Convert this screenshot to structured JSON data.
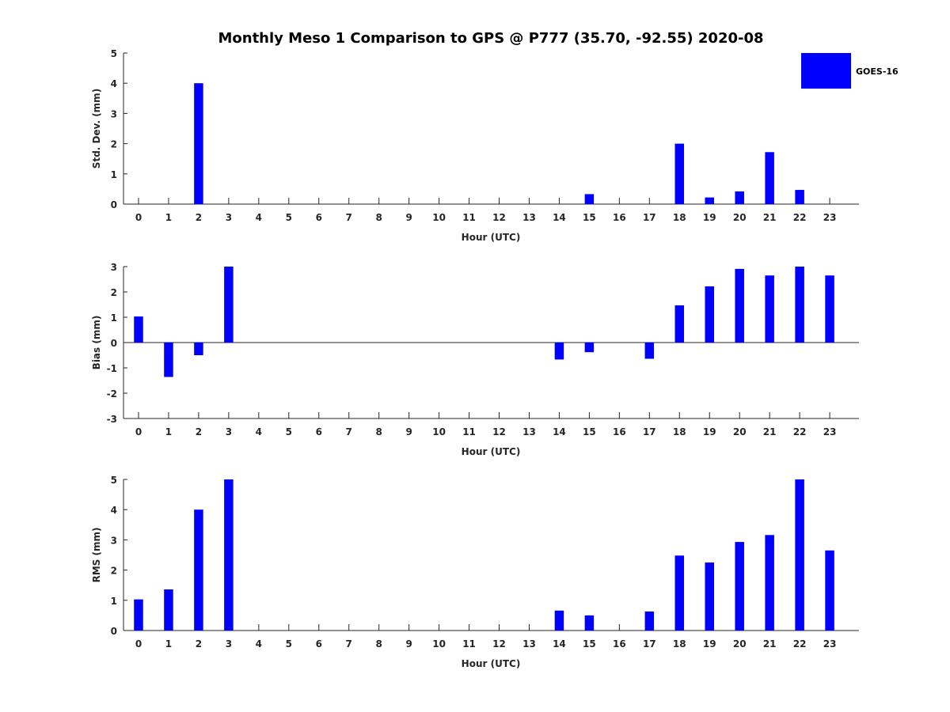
{
  "chart_data": {
    "title": "Monthly Meso 1 Comparison to GPS @ P777 (35.70, -92.55) 2020-08",
    "legend": {
      "label": "GOES-16",
      "color": "#0000ff",
      "placement": "top-right"
    },
    "bar_color": "#0000ff",
    "panels": [
      {
        "type": "bar",
        "name": "std-dev",
        "xlabel": "Hour (UTC)",
        "ylabel": "Std. Dev. (mm)",
        "ylim": [
          0,
          5
        ],
        "yticks": [
          0,
          1,
          2,
          3,
          4,
          5
        ],
        "categories": [
          "0",
          "1",
          "2",
          "3",
          "4",
          "5",
          "6",
          "7",
          "8",
          "9",
          "10",
          "11",
          "12",
          "13",
          "14",
          "15",
          "16",
          "17",
          "18",
          "19",
          "20",
          "21",
          "22",
          "23"
        ],
        "values": [
          0,
          0,
          4.0,
          0,
          0,
          0,
          0,
          0,
          0,
          0,
          0,
          0,
          0,
          0,
          0,
          0.33,
          0,
          0,
          2.0,
          0.22,
          0.42,
          1.72,
          0.47,
          0
        ]
      },
      {
        "type": "bar",
        "name": "bias",
        "xlabel": "Hour (UTC)",
        "ylabel": "Bias (mm)",
        "ylim": [
          -3,
          3
        ],
        "yticks": [
          -3,
          -2,
          -1,
          0,
          1,
          2,
          3
        ],
        "categories": [
          "0",
          "1",
          "2",
          "3",
          "4",
          "5",
          "6",
          "7",
          "8",
          "9",
          "10",
          "11",
          "12",
          "13",
          "14",
          "15",
          "16",
          "17",
          "18",
          "19",
          "20",
          "21",
          "22",
          "23"
        ],
        "values": [
          1.03,
          -1.36,
          -0.5,
          3.0,
          0,
          0,
          0,
          0,
          0,
          0,
          0,
          0,
          0,
          0,
          -0.67,
          -0.38,
          0,
          -0.64,
          1.47,
          2.22,
          2.91,
          2.65,
          3.0,
          2.65
        ]
      },
      {
        "type": "bar",
        "name": "rms",
        "xlabel": "Hour (UTC)",
        "ylabel": "RMS (mm)",
        "ylim": [
          0,
          5
        ],
        "yticks": [
          0,
          1,
          2,
          3,
          4,
          5
        ],
        "categories": [
          "0",
          "1",
          "2",
          "3",
          "4",
          "5",
          "6",
          "7",
          "8",
          "9",
          "10",
          "11",
          "12",
          "13",
          "14",
          "15",
          "16",
          "17",
          "18",
          "19",
          "20",
          "21",
          "22",
          "23"
        ],
        "values": [
          1.03,
          1.36,
          4.0,
          5.0,
          0,
          0,
          0,
          0,
          0,
          0,
          0,
          0,
          0,
          0,
          0.66,
          0.5,
          0,
          0.63,
          2.48,
          2.25,
          2.93,
          3.16,
          5.0,
          2.65
        ]
      }
    ]
  }
}
